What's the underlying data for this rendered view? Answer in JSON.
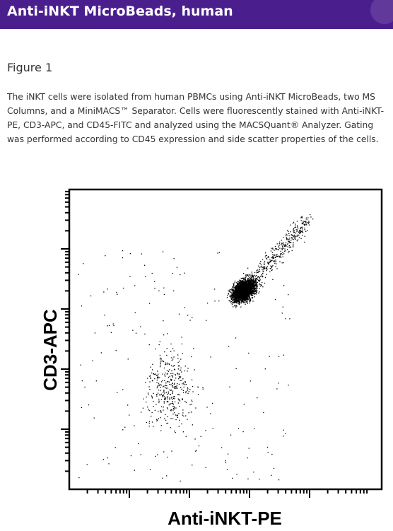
{
  "header": {
    "title": "Anti-iNKT MicroBeads, human"
  },
  "figure": {
    "label": "Figure 1",
    "caption": "The iNKT cells were isolated from human PBMCs using Anti-iNKT MicroBeads, two MS Columns, and a MiniMACS™ Separator. Cells were fluorescently stained with Anti-iNKT-PE, CD3-APC, and CD45-FITC and analyzed using the MACSQuant® Analyzer. Gating was performed according to CD45 expression and side scatter properties of the cells.",
    "x_axis_label": "Anti-iNKT-PE",
    "y_axis_label": "CD3-APC"
  }
}
